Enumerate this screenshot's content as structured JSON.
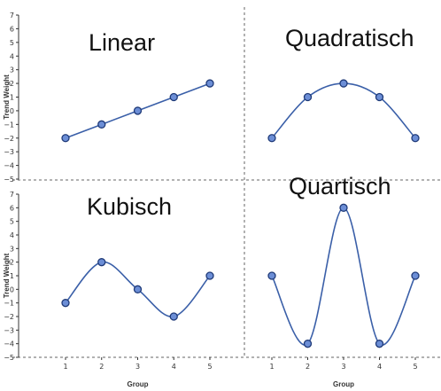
{
  "chart_data": [
    {
      "type": "line",
      "title": "Linear",
      "x": [
        1,
        2,
        3,
        4,
        5
      ],
      "series": [
        {
          "values": [
            -2,
            -1,
            0,
            1,
            2
          ]
        }
      ],
      "xlabel": "",
      "ylabel": "Trend Weight",
      "ylim": [
        -5,
        7
      ],
      "yticks": [
        -5,
        -4,
        -3,
        -2,
        -1,
        0,
        1,
        2,
        3,
        4,
        5,
        6,
        7
      ],
      "xticks": [],
      "grid": false,
      "colors": {
        "line": "#3a5fa8",
        "marker_fill": "#6c8ed6",
        "marker_edge": "#1f3a78"
      }
    },
    {
      "type": "line",
      "title": "Quadratisch",
      "x": [
        1,
        2,
        3,
        4,
        5
      ],
      "series": [
        {
          "values": [
            -2,
            1,
            2,
            1,
            -2
          ]
        }
      ],
      "xlabel": "",
      "ylabel": "",
      "ylim": [
        -5,
        7
      ],
      "yticks": [],
      "xticks": [],
      "grid": false,
      "colors": {
        "line": "#3a5fa8",
        "marker_fill": "#6c8ed6",
        "marker_edge": "#1f3a78"
      }
    },
    {
      "type": "line",
      "title": "Kubisch",
      "x": [
        1,
        2,
        3,
        4,
        5
      ],
      "series": [
        {
          "values": [
            -1,
            2,
            0,
            -2,
            1
          ]
        }
      ],
      "xlabel": "Group",
      "ylabel": "Trend Weight",
      "ylim": [
        -5,
        7
      ],
      "yticks": [
        -5,
        -4,
        -3,
        -2,
        -1,
        0,
        1,
        2,
        3,
        4,
        5,
        6,
        7
      ],
      "xticks": [
        1,
        2,
        3,
        4,
        5
      ],
      "grid": false,
      "colors": {
        "line": "#3a5fa8",
        "marker_fill": "#6c8ed6",
        "marker_edge": "#1f3a78"
      }
    },
    {
      "type": "line",
      "title": "Quartisch",
      "x": [
        1,
        2,
        3,
        4,
        5
      ],
      "series": [
        {
          "values": [
            1,
            -4,
            6,
            -4,
            1
          ]
        }
      ],
      "xlabel": "Group",
      "ylabel": "",
      "ylim": [
        -5,
        7
      ],
      "yticks": [],
      "xticks": [
        1,
        2,
        3,
        4,
        5
      ],
      "grid": false,
      "colors": {
        "line": "#3a5fa8",
        "marker_fill": "#6c8ed6",
        "marker_edge": "#1f3a78"
      }
    }
  ]
}
